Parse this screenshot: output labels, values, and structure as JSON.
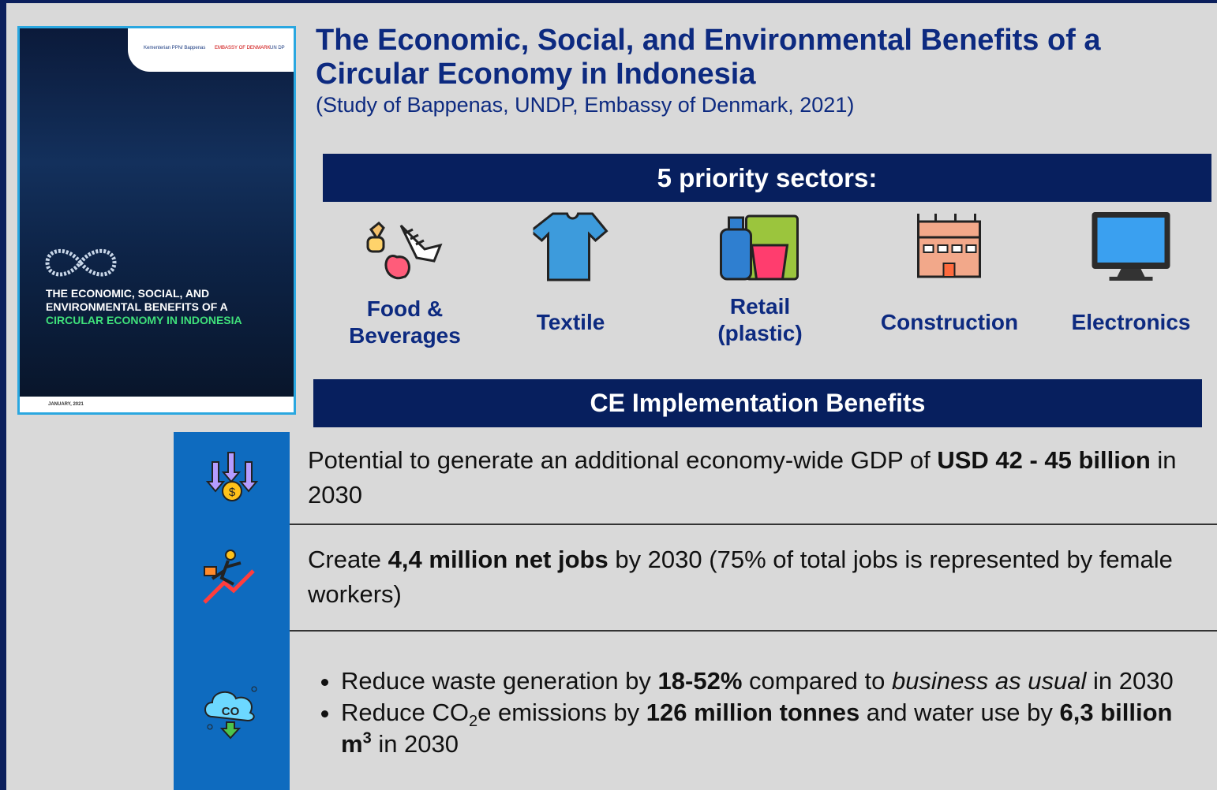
{
  "title": "The Economic, Social, and Environmental Benefits of a Circular Economy in Indonesia",
  "subtitle": "(Study of Bappenas, UNDP, Embassy of Denmark, 2021)",
  "cover": {
    "logos": [
      "Kementerian PPN/ Bappenas",
      "EMBASSY OF DENMARK",
      "UN DP"
    ],
    "title_lines": [
      "THE ECONOMIC, SOCIAL, AND",
      "ENVIRONMENTAL BENEFITS OF A"
    ],
    "highlight": "CIRCULAR ECONOMY IN INDONESIA",
    "date": "JANUARY, 2021"
  },
  "sectors": {
    "heading": "5 priority sectors:",
    "items": [
      "Food & Beverages",
      "Textile",
      "Retail (plastic)",
      "Construction",
      "Electronics"
    ]
  },
  "benefits": {
    "heading": "CE Implementation Benefits",
    "rows": [
      {
        "parts": [
          {
            "text": "Potential to generate an additional economy-wide GDP of "
          },
          {
            "text": "USD 42 - 45 billion",
            "bold": true
          },
          {
            "text": " in 2030"
          }
        ]
      },
      {
        "parts": [
          {
            "text": "Create "
          },
          {
            "text": "4,4 million net jobs",
            "bold": true
          },
          {
            "text": " by 2030 (75% of total jobs is represented by female workers)"
          }
        ]
      },
      {
        "bullets": [
          [
            {
              "text": "Reduce waste generation by "
            },
            {
              "text": "18-52%",
              "bold": true
            },
            {
              "text": " compared to "
            },
            {
              "text": "business as usual",
              "italic": true
            },
            {
              "text": " in 2030"
            }
          ],
          [
            {
              "text": "Reduce CO"
            },
            {
              "text": "2",
              "sub": true
            },
            {
              "text": "e emissions by "
            },
            {
              "text": "126 million tonnes",
              "bold": true
            },
            {
              "text": " and water use by "
            },
            {
              "text": "6,3 billion m",
              "bold": true
            },
            {
              "text": "3",
              "sup": true,
              "bold": true
            },
            {
              "text": " in 2030"
            }
          ]
        ]
      }
    ]
  }
}
